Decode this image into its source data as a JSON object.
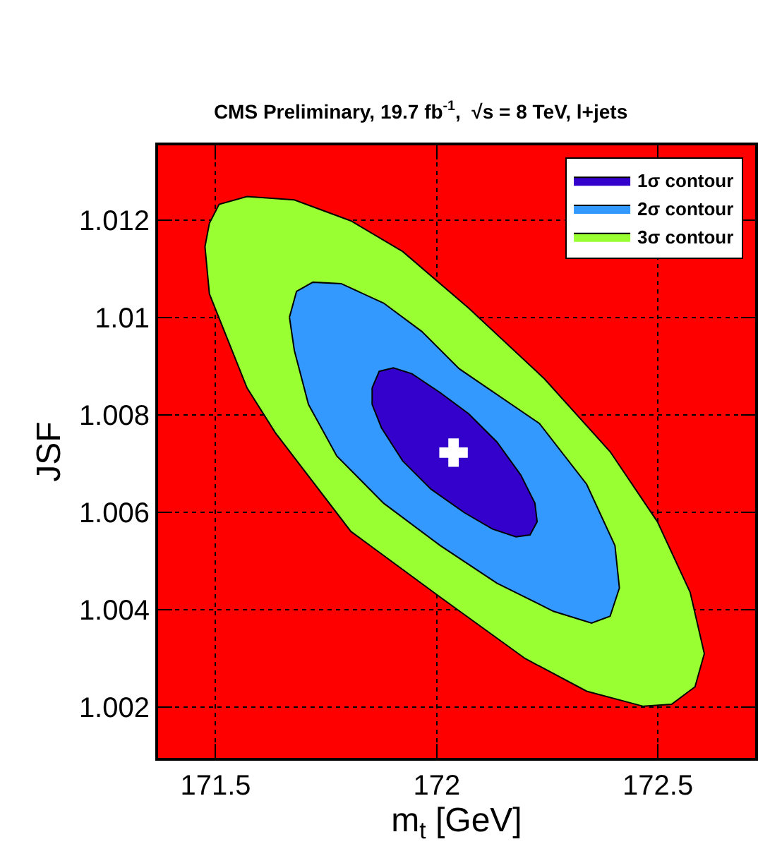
{
  "chart_data": {
    "type": "area",
    "title": "CMS Preliminary, 19.7 fb$^{-1}$,  √s = 8 TeV, l+jets",
    "xlabel": "m$_{t}$ [GeV]",
    "ylabel": "JSF",
    "xlim": [
      171.37,
      172.72
    ],
    "xticks": [
      171.5,
      172,
      172.5
    ],
    "ylim": [
      1.00096,
      1.01354
    ],
    "yticks": [
      1.002,
      1.004,
      1.006,
      1.008,
      1.01,
      1.012
    ],
    "grid": true,
    "legend": "top right",
    "bands": [
      {
        "axis": "y",
        "from": 1.00096,
        "to": 1.01354,
        "color": "#ff0000"
      }
    ],
    "series": [
      {
        "name": "3σ contour",
        "color": "#99ff33",
        "x": [
          171.486,
          171.508,
          171.571,
          171.678,
          171.806,
          171.923,
          172.072,
          172.243,
          172.392,
          172.499,
          172.573,
          172.605,
          172.584,
          172.531,
          172.467,
          172.339,
          172.2,
          172.008,
          171.806,
          171.635,
          171.571,
          171.486,
          171.476,
          171.486
        ],
        "values": [
          1.01194,
          1.01233,
          1.01249,
          1.01242,
          1.01199,
          1.01136,
          1.0102,
          1.00875,
          1.00725,
          1.00581,
          1.00436,
          1.0031,
          1.00242,
          1.00206,
          1.00202,
          1.00233,
          1.003,
          1.00426,
          1.00561,
          1.00764,
          1.00856,
          1.01049,
          1.01146,
          1.01194
        ]
      },
      {
        "name": "2σ contour",
        "color": "#3399ff",
        "x": [
          171.667,
          171.683,
          171.72,
          171.784,
          171.88,
          171.966,
          172.051,
          172.232,
          172.339,
          172.403,
          172.413,
          172.392,
          172.35,
          172.264,
          172.136,
          172.008,
          171.88,
          171.774,
          171.71,
          171.678,
          171.667
        ],
        "values": [
          1.01001,
          1.01054,
          1.01073,
          1.0107,
          1.0103,
          1.00972,
          1.00895,
          1.00783,
          1.00658,
          1.00532,
          1.00445,
          1.00387,
          1.00373,
          1.00397,
          1.00455,
          1.00532,
          1.00619,
          1.00716,
          1.00822,
          1.00933,
          1.01001
        ]
      },
      {
        "name": "1σ contour",
        "color": "#3300cc",
        "x": [
          171.854,
          171.87,
          171.902,
          171.944,
          172.008,
          172.072,
          172.136,
          172.19,
          172.222,
          172.227,
          172.211,
          172.179,
          172.126,
          172.062,
          171.987,
          171.923,
          171.875,
          171.854,
          171.854
        ],
        "values": [
          1.00856,
          1.0089,
          1.00897,
          1.00885,
          1.00846,
          1.00803,
          1.00745,
          1.00677,
          1.00619,
          1.00581,
          1.00554,
          1.0055,
          1.00566,
          1.006,
          1.00648,
          1.00706,
          1.00774,
          1.00822,
          1.00856
        ]
      },
      {
        "type": "scatter",
        "marker": "cross",
        "color": "#ffffff",
        "x": [
          172.038
        ],
        "values": [
          1.00723
        ]
      }
    ]
  }
}
